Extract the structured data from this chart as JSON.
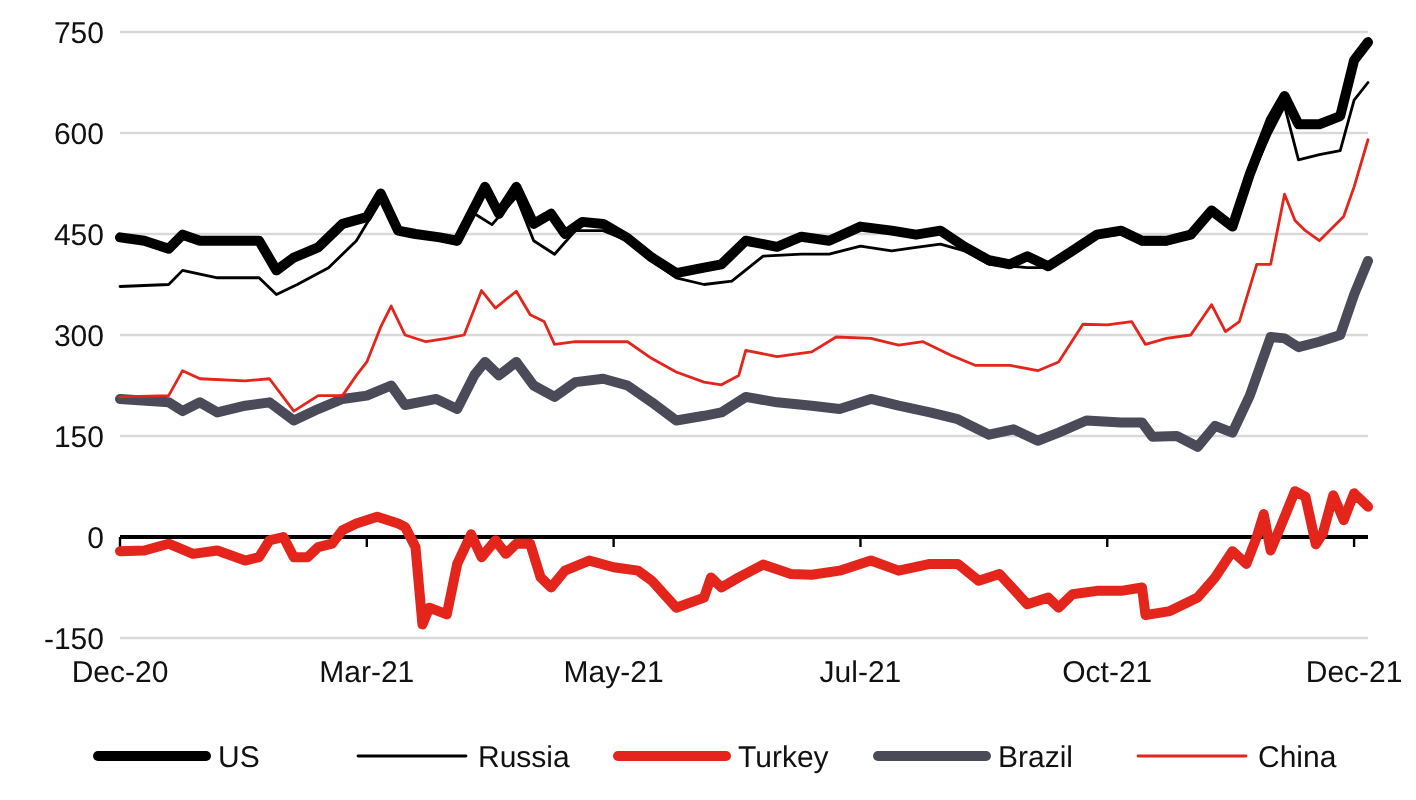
{
  "chart_data": {
    "type": "line",
    "xlim": [
      "2020-12-21",
      "2021-12-15"
    ],
    "xticks": [
      {
        "value": "2020-12-21",
        "label": "Dec-20"
      },
      {
        "value": "2021-03-02",
        "label": "Mar-21"
      },
      {
        "value": "2021-05-12",
        "label": "May-21"
      },
      {
        "value": "2021-07-22",
        "label": "Jul-21"
      },
      {
        "value": "2021-10-01",
        "label": "Oct-21"
      },
      {
        "value": "2021-12-11",
        "label": "Dec-21"
      }
    ],
    "ylim": [
      -150,
      750
    ],
    "yticks": [
      -150,
      0,
      150,
      300,
      450,
      600,
      750
    ],
    "grid": "y",
    "legend": "bottom",
    "marker": "none",
    "line_style": "solid",
    "series": [
      {
        "name": "US",
        "color": "#000000",
        "x": [
          "2020-12-21",
          "2020-12-28",
          "2021-01-04",
          "2021-01-08",
          "2021-01-13",
          "2021-01-21",
          "2021-01-30",
          "2021-02-04",
          "2021-02-09",
          "2021-02-16",
          "2021-02-23",
          "2021-03-02",
          "2021-03-06",
          "2021-03-11",
          "2021-03-16",
          "2021-03-23",
          "2021-03-28",
          "2021-04-05",
          "2021-04-09",
          "2021-04-14",
          "2021-04-19",
          "2021-04-24",
          "2021-04-28",
          "2021-05-03",
          "2021-05-09",
          "2021-05-16",
          "2021-05-23",
          "2021-05-30",
          "2021-06-07",
          "2021-06-12",
          "2021-06-19",
          "2021-06-28",
          "2021-07-05",
          "2021-07-13",
          "2021-07-22",
          "2021-07-31",
          "2021-08-07",
          "2021-08-14",
          "2021-08-21",
          "2021-08-28",
          "2021-09-03",
          "2021-09-08",
          "2021-09-14",
          "2021-09-21",
          "2021-09-28",
          "2021-10-05",
          "2021-10-11",
          "2021-10-18",
          "2021-10-25",
          "2021-10-31",
          "2021-11-06",
          "2021-11-11",
          "2021-11-17",
          "2021-11-21",
          "2021-11-25",
          "2021-12-01",
          "2021-12-07",
          "2021-12-11",
          "2021-12-15"
        ],
        "values": [
          445,
          440,
          428,
          449,
          440,
          440,
          440,
          396,
          415,
          430,
          465,
          475,
          510,
          455,
          450,
          445,
          440,
          520,
          480,
          520,
          465,
          480,
          450,
          468,
          465,
          444,
          415,
          392,
          400,
          405,
          440,
          431,
          446,
          440,
          461,
          455,
          449,
          455,
          431,
          411,
          405,
          417,
          402,
          425,
          449,
          455,
          440,
          440,
          449,
          485,
          461,
          539,
          619,
          655,
          613,
          613,
          625,
          708,
          735
        ]
      },
      {
        "name": "Russia",
        "color": "#000000",
        "x": [
          "2020-12-21",
          "2021-01-04",
          "2021-01-08",
          "2021-01-18",
          "2021-01-30",
          "2021-02-04",
          "2021-02-10",
          "2021-02-19",
          "2021-02-27",
          "2021-03-06",
          "2021-03-11",
          "2021-03-19",
          "2021-03-28",
          "2021-04-02",
          "2021-04-07",
          "2021-04-14",
          "2021-04-19",
          "2021-04-25",
          "2021-05-01",
          "2021-05-09",
          "2021-05-16",
          "2021-05-23",
          "2021-05-30",
          "2021-06-07",
          "2021-06-15",
          "2021-06-24",
          "2021-07-05",
          "2021-07-13",
          "2021-07-22",
          "2021-07-31",
          "2021-08-07",
          "2021-08-14",
          "2021-08-21",
          "2021-08-28",
          "2021-09-08",
          "2021-09-14",
          "2021-09-21",
          "2021-09-28",
          "2021-10-05",
          "2021-10-11",
          "2021-10-18",
          "2021-10-25",
          "2021-10-31",
          "2021-11-06",
          "2021-11-11",
          "2021-11-17",
          "2021-11-21",
          "2021-11-25",
          "2021-12-01",
          "2021-12-07",
          "2021-12-11",
          "2021-12-15"
        ],
        "values": [
          372,
          375,
          396,
          385,
          385,
          360,
          375,
          400,
          440,
          500,
          455,
          445,
          435,
          480,
          464,
          505,
          440,
          420,
          455,
          455,
          440,
          410,
          385,
          375,
          380,
          417,
          420,
          420,
          432,
          425,
          430,
          435,
          425,
          405,
          400,
          400,
          425,
          445,
          450,
          435,
          435,
          445,
          480,
          460,
          530,
          600,
          640,
          560,
          568,
          574,
          649,
          675
        ]
      },
      {
        "name": "Turkey",
        "color": "#e3251b",
        "x": [
          "2020-12-21",
          "2020-12-28",
          "2021-01-04",
          "2021-01-11",
          "2021-01-18",
          "2021-01-26",
          "2021-01-30",
          "2021-02-02",
          "2021-02-06",
          "2021-02-09",
          "2021-02-13",
          "2021-02-16",
          "2021-02-20",
          "2021-02-23",
          "2021-02-27",
          "2021-03-05",
          "2021-03-11",
          "2021-03-13",
          "2021-03-16",
          "2021-03-18",
          "2021-03-20",
          "2021-03-25",
          "2021-03-28",
          "2021-04-01",
          "2021-04-04",
          "2021-04-08",
          "2021-04-11",
          "2021-04-14",
          "2021-04-18",
          "2021-04-21",
          "2021-04-24",
          "2021-04-28",
          "2021-05-05",
          "2021-05-12",
          "2021-05-19",
          "2021-05-23",
          "2021-05-30",
          "2021-06-07",
          "2021-06-09",
          "2021-06-12",
          "2021-06-17",
          "2021-06-24",
          "2021-07-02",
          "2021-07-08",
          "2021-07-16",
          "2021-07-25",
          "2021-08-02",
          "2021-08-11",
          "2021-08-19",
          "2021-08-25",
          "2021-08-31",
          "2021-09-08",
          "2021-09-14",
          "2021-09-17",
          "2021-09-21",
          "2021-09-28",
          "2021-10-05",
          "2021-10-11",
          "2021-10-12",
          "2021-10-19",
          "2021-10-27",
          "2021-11-01",
          "2021-11-06",
          "2021-11-10",
          "2021-11-13",
          "2021-11-15",
          "2021-11-17",
          "2021-11-21",
          "2021-11-24",
          "2021-11-27",
          "2021-11-30",
          "2021-12-02",
          "2021-12-05",
          "2021-12-08",
          "2021-12-11",
          "2021-12-15"
        ],
        "values": [
          -21,
          -20,
          -10,
          -25,
          -20,
          -35,
          -30,
          -5,
          0,
          -30,
          -30,
          -15,
          -10,
          10,
          20,
          30,
          20,
          15,
          -15,
          -130,
          -105,
          -115,
          -40,
          4,
          -30,
          -5,
          -25,
          -10,
          -10,
          -60,
          -75,
          -50,
          -35,
          -45,
          -50,
          -65,
          -105,
          -90,
          -60,
          -75,
          -60,
          -41,
          -55,
          -56,
          -50,
          -35,
          -50,
          -40,
          -40,
          -65,
          -55,
          -100,
          -90,
          -105,
          -85,
          -80,
          -80,
          -75,
          -116,
          -110,
          -90,
          -60,
          -21,
          -40,
          0,
          34,
          -20,
          30,
          68,
          60,
          -11,
          5,
          62,
          25,
          65,
          45
        ]
      },
      {
        "name": "Brazil",
        "color": "#4a4a58",
        "x": [
          "2020-12-21",
          "2021-01-04",
          "2021-01-08",
          "2021-01-13",
          "2021-01-18",
          "2021-01-26",
          "2021-02-02",
          "2021-02-09",
          "2021-02-16",
          "2021-02-23",
          "2021-03-02",
          "2021-03-09",
          "2021-03-13",
          "2021-03-22",
          "2021-03-28",
          "2021-04-02",
          "2021-04-05",
          "2021-04-09",
          "2021-04-14",
          "2021-04-19",
          "2021-04-25",
          "2021-05-01",
          "2021-05-09",
          "2021-05-16",
          "2021-05-23",
          "2021-05-30",
          "2021-06-07",
          "2021-06-12",
          "2021-06-19",
          "2021-06-28",
          "2021-07-08",
          "2021-07-16",
          "2021-07-25",
          "2021-08-02",
          "2021-08-11",
          "2021-08-19",
          "2021-08-28",
          "2021-09-04",
          "2021-09-11",
          "2021-09-17",
          "2021-09-25",
          "2021-10-05",
          "2021-10-11",
          "2021-10-14",
          "2021-10-21",
          "2021-10-27",
          "2021-11-01",
          "2021-11-06",
          "2021-11-11",
          "2021-11-17",
          "2021-11-21",
          "2021-11-25",
          "2021-12-01",
          "2021-12-07",
          "2021-12-11",
          "2021-12-15"
        ],
        "values": [
          205,
          200,
          187,
          200,
          185,
          195,
          200,
          173,
          190,
          205,
          210,
          225,
          196,
          205,
          190,
          241,
          260,
          240,
          260,
          225,
          208,
          230,
          235,
          225,
          200,
          173,
          180,
          185,
          208,
          200,
          195,
          190,
          205,
          195,
          185,
          175,
          152,
          160,
          143,
          155,
          173,
          170,
          170,
          149,
          150,
          134,
          165,
          155,
          210,
          297,
          295,
          282,
          290,
          300,
          360,
          410
        ]
      },
      {
        "name": "China",
        "color": "#e3251b",
        "x": [
          "2020-12-21",
          "2021-01-04",
          "2021-01-08",
          "2021-01-13",
          "2021-01-26",
          "2021-02-02",
          "2021-02-09",
          "2021-02-16",
          "2021-02-23",
          "2021-02-27",
          "2021-03-02",
          "2021-03-06",
          "2021-03-09",
          "2021-03-13",
          "2021-03-19",
          "2021-03-25",
          "2021-03-30",
          "2021-04-04",
          "2021-04-08",
          "2021-04-14",
          "2021-04-18",
          "2021-04-22",
          "2021-04-25",
          "2021-05-01",
          "2021-05-09",
          "2021-05-16",
          "2021-05-23",
          "2021-05-30",
          "2021-06-07",
          "2021-06-12",
          "2021-06-17",
          "2021-06-19",
          "2021-06-28",
          "2021-07-08",
          "2021-07-15",
          "2021-07-25",
          "2021-08-02",
          "2021-08-09",
          "2021-08-17",
          "2021-08-24",
          "2021-09-03",
          "2021-09-11",
          "2021-09-17",
          "2021-09-24",
          "2021-10-01",
          "2021-10-08",
          "2021-10-12",
          "2021-10-18",
          "2021-10-25",
          "2021-10-31",
          "2021-11-04",
          "2021-11-08",
          "2021-11-13",
          "2021-11-17",
          "2021-11-21",
          "2021-11-24",
          "2021-11-27",
          "2021-12-01",
          "2021-12-08",
          "2021-12-11",
          "2021-12-15"
        ],
        "values": [
          208,
          210,
          247,
          235,
          232,
          235,
          187,
          210,
          210,
          240,
          260,
          312,
          343,
          300,
          290,
          295,
          300,
          366,
          340,
          365,
          330,
          320,
          286,
          290,
          290,
          290,
          265,
          245,
          230,
          226,
          240,
          277,
          268,
          275,
          297,
          295,
          285,
          290,
          270,
          255,
          255,
          247,
          260,
          316,
          315,
          320,
          286,
          295,
          300,
          345,
          305,
          320,
          405,
          405,
          509,
          470,
          455,
          440,
          476,
          520,
          590
        ]
      }
    ]
  }
}
